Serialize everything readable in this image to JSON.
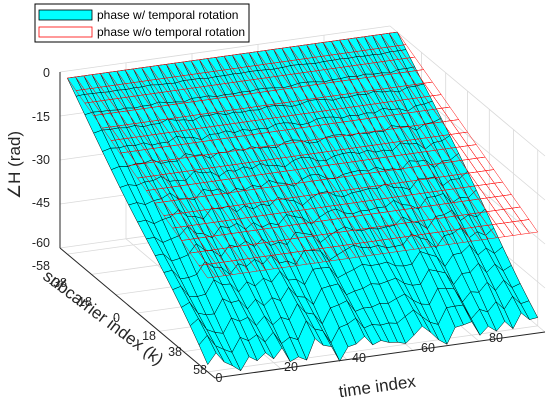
{
  "chart_data": {
    "type": "surface",
    "xlabel": "time index",
    "ylabel": "subcarrier index (k)",
    "zlabel": "∠H (rad)",
    "xlim": [
      0,
      100
    ],
    "ylim": [
      -64,
      64
    ],
    "zlim": [
      -60,
      0
    ],
    "x_ticks": [
      "0",
      "20",
      "40",
      "60",
      "80"
    ],
    "y_ticks": [
      "-58",
      "-38",
      "-18",
      "0",
      "18",
      "38",
      "58"
    ],
    "z_ticks": [
      "0",
      "-15",
      "-30",
      "-45",
      "-60"
    ],
    "grid": true,
    "legend_position": "top-left",
    "series": [
      {
        "name": "phase w/ temporal rotation",
        "face_color": "#00ffff",
        "edge_color": "#000000",
        "description_values": {
          "phase_at_k_minus58": 0,
          "phase_at_k_58_range": [
            -60,
            -45
          ]
        }
      },
      {
        "name": "phase w/o temporal rotation",
        "face_color": "none",
        "edge_color": "#ff0000",
        "description_values": {
          "phase_at_k_minus58": 0,
          "phase_at_k_58": -28
        }
      }
    ]
  }
}
